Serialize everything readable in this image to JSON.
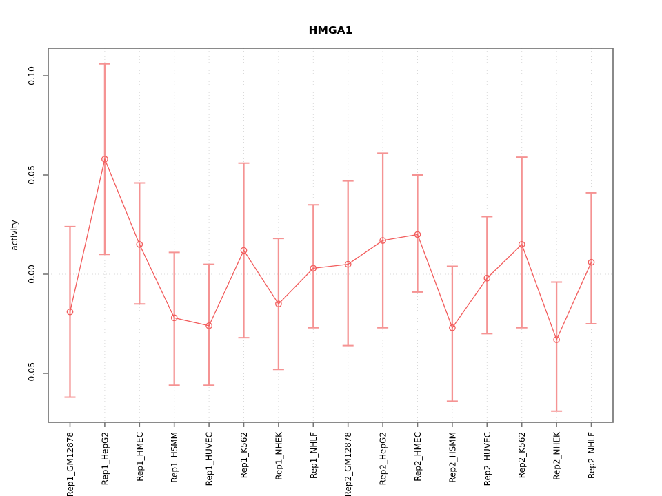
{
  "page": {
    "background": "#ffffff"
  },
  "chart_data": {
    "type": "line",
    "title": "HMGA1",
    "xlabel": "",
    "ylabel": "activity",
    "categories": [
      "Rep1_GM12878",
      "Rep1_HepG2",
      "Rep1_HMEC",
      "Rep1_HSMM",
      "Rep1_HUVEC",
      "Rep1_K562",
      "Rep1_NHEK",
      "Rep1_NHLF",
      "Rep2_GM12878",
      "Rep2_HepG2",
      "Rep2_HMEC",
      "Rep2_HSMM",
      "Rep2_HUVEC",
      "Rep2_K562",
      "Rep2_NHEK",
      "Rep2_NHLF"
    ],
    "series": [
      {
        "name": "activity",
        "marker": "open-circle",
        "values": [
          -0.019,
          0.058,
          0.015,
          -0.022,
          -0.026,
          0.012,
          -0.015,
          0.003,
          0.005,
          0.017,
          0.02,
          -0.027,
          -0.002,
          0.015,
          -0.033,
          0.006
        ]
      }
    ],
    "error_bars": {
      "upper": [
        0.024,
        0.106,
        0.046,
        0.011,
        0.005,
        0.056,
        0.018,
        0.035,
        0.047,
        0.061,
        0.05,
        0.004,
        0.029,
        0.059,
        -0.004,
        0.041
      ],
      "lower": [
        -0.062,
        0.01,
        -0.015,
        -0.056,
        -0.056,
        -0.032,
        -0.048,
        -0.027,
        -0.036,
        -0.027,
        -0.009,
        -0.064,
        -0.03,
        -0.027,
        -0.069,
        -0.025
      ]
    },
    "ytick_values": [
      -0.05,
      0.0,
      0.05,
      0.1
    ],
    "ytick_labels": [
      "-0.05",
      "0.00",
      "0.05",
      "0.10"
    ],
    "ylim": [
      -0.075,
      0.114
    ],
    "grid": {
      "vertical": "dotted line at every category",
      "horizontal": "dotted line at zero"
    },
    "legend": "none",
    "colors": {
      "line": "#f25c5c",
      "marker": "#f25c5c",
      "error_bar": "#f59393",
      "grid": "#d9d9d9",
      "axis": "#767676",
      "text": "#000000",
      "background": "#ffffff"
    }
  }
}
